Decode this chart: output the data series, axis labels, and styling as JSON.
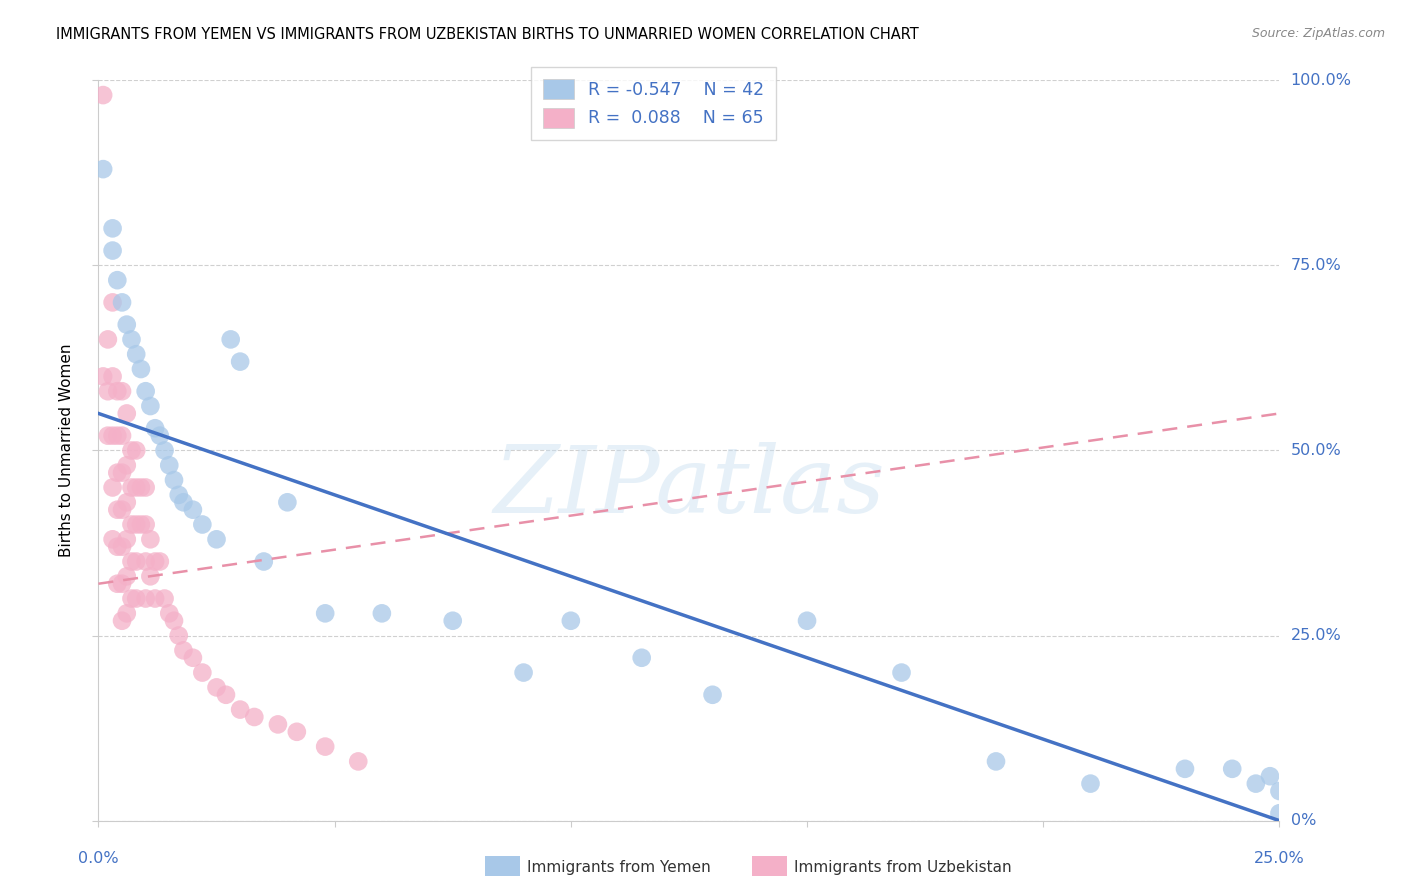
{
  "title": "IMMIGRANTS FROM YEMEN VS IMMIGRANTS FROM UZBEKISTAN BIRTHS TO UNMARRIED WOMEN CORRELATION CHART",
  "source": "Source: ZipAtlas.com",
  "ylabel": "Births to Unmarried Women",
  "legend_R1": "R = -0.547",
  "legend_N1": "N = 42",
  "legend_R2": "R =  0.088",
  "legend_N2": "N = 65",
  "legend_label1": "Immigrants from Yemen",
  "legend_label2": "Immigrants from Uzbekistan",
  "color_yemen": "#a8c8e8",
  "color_uzbekistan": "#f4b0c8",
  "color_line_yemen": "#4472c4",
  "color_line_uzbekistan": "#e890a8",
  "color_axis_labels": "#4472c4",
  "watermark_text": "ZIPatlas",
  "xlim": [
    0.0,
    0.25
  ],
  "ylim": [
    0.0,
    1.0
  ],
  "yemen_x": [
    0.001,
    0.003,
    0.003,
    0.004,
    0.005,
    0.006,
    0.007,
    0.008,
    0.009,
    0.01,
    0.011,
    0.012,
    0.013,
    0.014,
    0.015,
    0.016,
    0.017,
    0.018,
    0.02,
    0.022,
    0.025,
    0.028,
    0.03,
    0.035,
    0.04,
    0.048,
    0.06,
    0.075,
    0.09,
    0.1,
    0.115,
    0.13,
    0.15,
    0.17,
    0.19,
    0.21,
    0.23,
    0.24,
    0.245,
    0.248,
    0.25,
    0.25
  ],
  "yemen_y": [
    0.88,
    0.8,
    0.77,
    0.73,
    0.7,
    0.67,
    0.65,
    0.63,
    0.61,
    0.58,
    0.56,
    0.53,
    0.52,
    0.5,
    0.48,
    0.46,
    0.44,
    0.43,
    0.42,
    0.4,
    0.38,
    0.65,
    0.62,
    0.35,
    0.43,
    0.28,
    0.28,
    0.27,
    0.2,
    0.27,
    0.22,
    0.17,
    0.27,
    0.2,
    0.08,
    0.05,
    0.07,
    0.07,
    0.05,
    0.06,
    0.04,
    0.01
  ],
  "uzbekistan_x": [
    0.001,
    0.001,
    0.002,
    0.002,
    0.002,
    0.003,
    0.003,
    0.003,
    0.003,
    0.003,
    0.004,
    0.004,
    0.004,
    0.004,
    0.004,
    0.004,
    0.005,
    0.005,
    0.005,
    0.005,
    0.005,
    0.005,
    0.005,
    0.006,
    0.006,
    0.006,
    0.006,
    0.006,
    0.006,
    0.007,
    0.007,
    0.007,
    0.007,
    0.007,
    0.008,
    0.008,
    0.008,
    0.008,
    0.008,
    0.009,
    0.009,
    0.01,
    0.01,
    0.01,
    0.01,
    0.011,
    0.011,
    0.012,
    0.012,
    0.013,
    0.014,
    0.015,
    0.016,
    0.017,
    0.018,
    0.02,
    0.022,
    0.025,
    0.027,
    0.03,
    0.033,
    0.038,
    0.042,
    0.048,
    0.055
  ],
  "uzbekistan_y": [
    0.98,
    0.6,
    0.65,
    0.58,
    0.52,
    0.7,
    0.6,
    0.52,
    0.45,
    0.38,
    0.58,
    0.52,
    0.47,
    0.42,
    0.37,
    0.32,
    0.58,
    0.52,
    0.47,
    0.42,
    0.37,
    0.32,
    0.27,
    0.55,
    0.48,
    0.43,
    0.38,
    0.33,
    0.28,
    0.5,
    0.45,
    0.4,
    0.35,
    0.3,
    0.5,
    0.45,
    0.4,
    0.35,
    0.3,
    0.45,
    0.4,
    0.45,
    0.4,
    0.35,
    0.3,
    0.38,
    0.33,
    0.35,
    0.3,
    0.35,
    0.3,
    0.28,
    0.27,
    0.25,
    0.23,
    0.22,
    0.2,
    0.18,
    0.17,
    0.15,
    0.14,
    0.13,
    0.12,
    0.1,
    0.08
  ]
}
